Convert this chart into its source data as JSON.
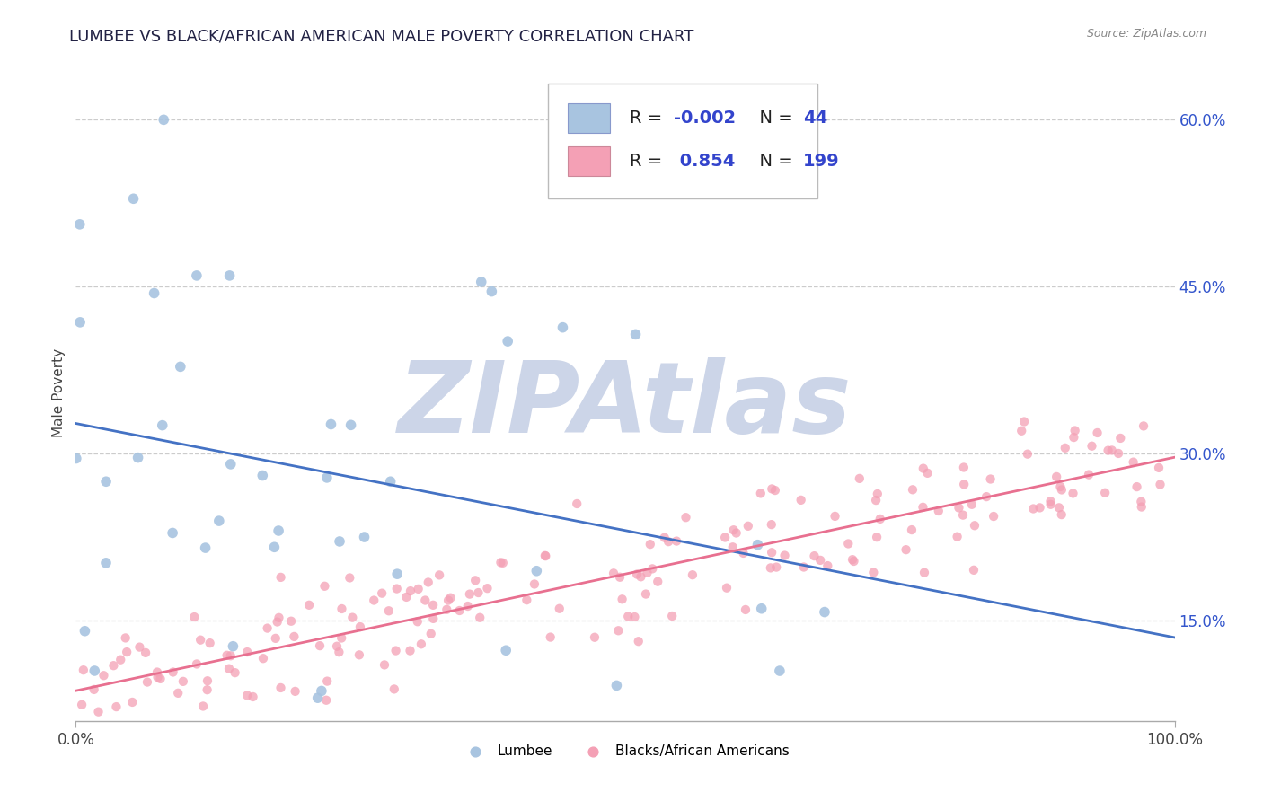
{
  "title": "LUMBEE VS BLACK/AFRICAN AMERICAN MALE POVERTY CORRELATION CHART",
  "source_text": "Source: ZipAtlas.com",
  "ylabel": "Male Poverty",
  "xlim": [
    0,
    1
  ],
  "ylim": [
    0.06,
    0.65
  ],
  "yticks": [
    0.15,
    0.3,
    0.45,
    0.6
  ],
  "ytick_labels": [
    "15.0%",
    "30.0%",
    "45.0%",
    "60.0%"
  ],
  "xticks": [
    0.0,
    1.0
  ],
  "xtick_labels": [
    "0.0%",
    "100.0%"
  ],
  "lumbee_R": -0.002,
  "lumbee_N": 44,
  "black_R": 0.854,
  "black_N": 199,
  "lumbee_color": "#a8c4e0",
  "black_color": "#f4a0b5",
  "lumbee_line_color": "#4472c4",
  "black_line_color": "#e87090",
  "lumbee_line_y": 0.265,
  "black_line_start_y": 0.1,
  "black_line_end_y": 0.285,
  "watermark_color": "#ccd5e8",
  "background_color": "#ffffff",
  "grid_color": "#cccccc",
  "title_fontsize": 13,
  "axis_label_fontsize": 11,
  "tick_fontsize": 12,
  "legend_fontsize": 14
}
